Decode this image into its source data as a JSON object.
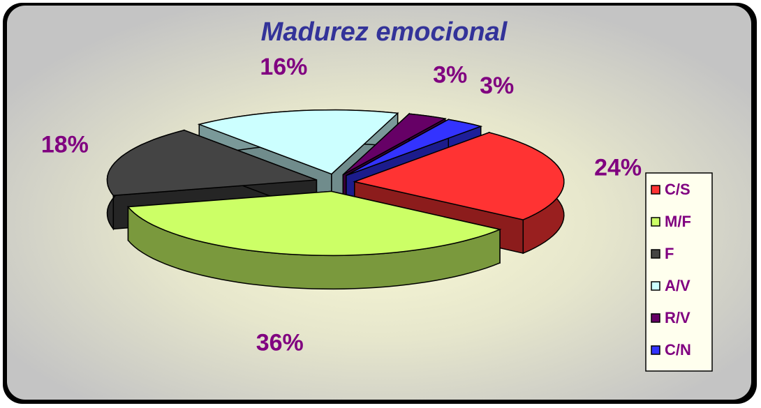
{
  "chart_data": {
    "type": "pie",
    "title": "Madurez emocional",
    "categories": [
      "C/S",
      "M/F",
      "F",
      "A/V",
      "R/V",
      "C/N"
    ],
    "values": [
      24,
      36,
      18,
      16,
      3,
      3
    ],
    "value_labels": [
      "24%",
      "36%",
      "18%",
      "16%",
      "3%",
      "3%"
    ],
    "colors": [
      "#ff3333",
      "#ccff66",
      "#444444",
      "#ccffff",
      "#660066",
      "#3333ff"
    ],
    "legend": "right"
  }
}
